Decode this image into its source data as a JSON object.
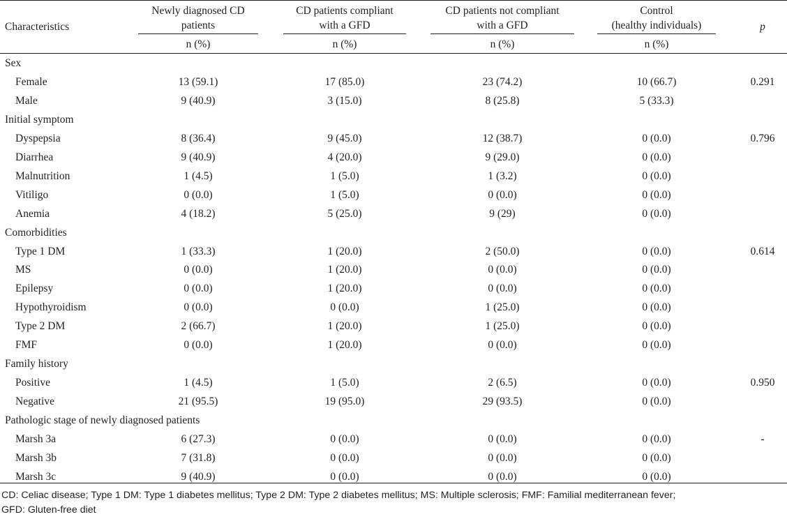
{
  "table": {
    "headers": {
      "characteristics": "Characteristics",
      "col1": [
        "Newly diagnosed CD",
        "patients"
      ],
      "col2": [
        "CD patients compliant",
        "with a GFD"
      ],
      "col3": [
        "CD patients not compliant",
        "with a GFD"
      ],
      "col4": [
        "Control",
        "(healthy individuals)"
      ],
      "p": "p",
      "subheader": [
        "n (%)",
        "n (%)",
        "n (%)",
        "n (%)"
      ]
    },
    "rows": [
      {
        "type": "section",
        "label": "Sex"
      },
      {
        "type": "data",
        "label": "Female",
        "values": [
          "13 (59.1)",
          "17 (85.0)",
          "23 (74.2)",
          "10 (66.7)"
        ],
        "p": "0.291"
      },
      {
        "type": "data",
        "label": "Male",
        "values": [
          "9 (40.9)",
          "3 (15.0)",
          "8 (25.8)",
          "5 (33.3)"
        ],
        "p": ""
      },
      {
        "type": "section",
        "label": "Initial symptom"
      },
      {
        "type": "data",
        "label": "Dyspepsia",
        "values": [
          "8 (36.4)",
          "9 (45.0)",
          "12 (38.7)",
          "0 (0.0)"
        ],
        "p": "0.796"
      },
      {
        "type": "data",
        "label": "Diarrhea",
        "values": [
          "9 (40.9)",
          "4 (20.0)",
          "9 (29.0)",
          "0 (0.0)"
        ],
        "p": ""
      },
      {
        "type": "data",
        "label": "Malnutrition",
        "values": [
          "1 (4.5)",
          "1 (5.0)",
          "1 (3.2)",
          "0 (0.0)"
        ],
        "p": ""
      },
      {
        "type": "data",
        "label": "Vitiligo",
        "values": [
          "0 (0.0)",
          "1 (5.0)",
          "0 (0.0)",
          "0 (0.0)"
        ],
        "p": ""
      },
      {
        "type": "data",
        "label": "Anemia",
        "values": [
          "4 (18.2)",
          "5 (25.0)",
          "9 (29)",
          "0 (0.0)"
        ],
        "p": ""
      },
      {
        "type": "section",
        "label": "Comorbidities"
      },
      {
        "type": "data",
        "label": "Type 1 DM",
        "values": [
          "1 (33.3)",
          "1 (20.0)",
          "2 (50.0)",
          "0 (0.0)"
        ],
        "p": "0.614"
      },
      {
        "type": "data",
        "label": "MS",
        "values": [
          "0 (0.0)",
          "1 (20.0)",
          "0 (0.0)",
          "0 (0.0)"
        ],
        "p": ""
      },
      {
        "type": "data",
        "label": "Epilepsy",
        "values": [
          "0 (0.0)",
          "1 (20.0)",
          "0 (0.0)",
          "0 (0.0)"
        ],
        "p": ""
      },
      {
        "type": "data",
        "label": "Hypothyroidism",
        "values": [
          "0 (0.0)",
          "0 (0.0)",
          "1 (25.0)",
          "0 (0.0)"
        ],
        "p": ""
      },
      {
        "type": "data",
        "label": "Type 2 DM",
        "values": [
          "2 (66.7)",
          "1 (20.0)",
          "1 (25.0)",
          "0 (0.0)"
        ],
        "p": ""
      },
      {
        "type": "data",
        "label": "FMF",
        "values": [
          "0 (0.0)",
          "1 (20.0)",
          "0 (0.0)",
          "0 (0.0)"
        ],
        "p": ""
      },
      {
        "type": "section",
        "label": "Family history"
      },
      {
        "type": "data",
        "label": "Positive",
        "values": [
          "1 (4.5)",
          "1 (5.0)",
          "2 (6.5)",
          "0 (0.0)"
        ],
        "p": "0.950"
      },
      {
        "type": "data",
        "label": "Negative",
        "values": [
          "21 (95.5)",
          "19 (95.0)",
          "29 (93.5)",
          "0 (0.0)"
        ],
        "p": ""
      },
      {
        "type": "section",
        "label": "Pathologic stage of newly diagnosed patients"
      },
      {
        "type": "data",
        "label": "Marsh 3a",
        "values": [
          "6 (27.3)",
          "0 (0.0)",
          "0 (0.0)",
          "0 (0.0)"
        ],
        "p": "-"
      },
      {
        "type": "data",
        "label": "Marsh 3b",
        "values": [
          "7 (31.8)",
          "0 (0.0)",
          "0 (0.0)",
          "0 (0.0)"
        ],
        "p": ""
      },
      {
        "type": "data",
        "label": "Marsh 3c",
        "values": [
          "9 (40.9)",
          "0 (0.0)",
          "0 (0.0)",
          "0 (0.0)"
        ],
        "p": ""
      }
    ]
  },
  "footnote": {
    "line1": "CD: Celiac disease; Type 1 DM: Type 1 diabetes mellitus; Type 2 DM: Type 2 diabetes mellitus; MS: Multiple sclerosis; FMF: Familial mediterranean fever;",
    "line2": "GFD: Gluten-free diet"
  }
}
